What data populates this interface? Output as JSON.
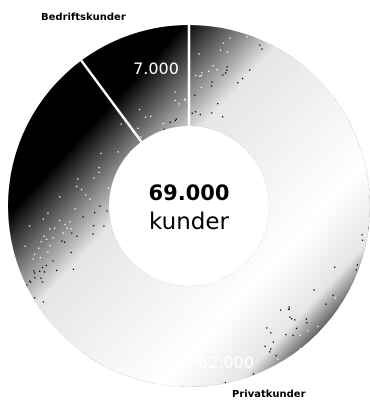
{
  "chart_data": {
    "type": "pie",
    "style": "donut",
    "center": {
      "value": "69.000",
      "unit": "kunder"
    },
    "segments": [
      {
        "name": "Privatkunder",
        "value": 62000,
        "value_label": "62.000",
        "color": "#000000"
      },
      {
        "name": "Bedriftskunder",
        "value": 7000,
        "value_label": "7.000",
        "color": "#000000"
      }
    ],
    "separator_color": "#ffffff",
    "grain_color": "#ffffff"
  }
}
